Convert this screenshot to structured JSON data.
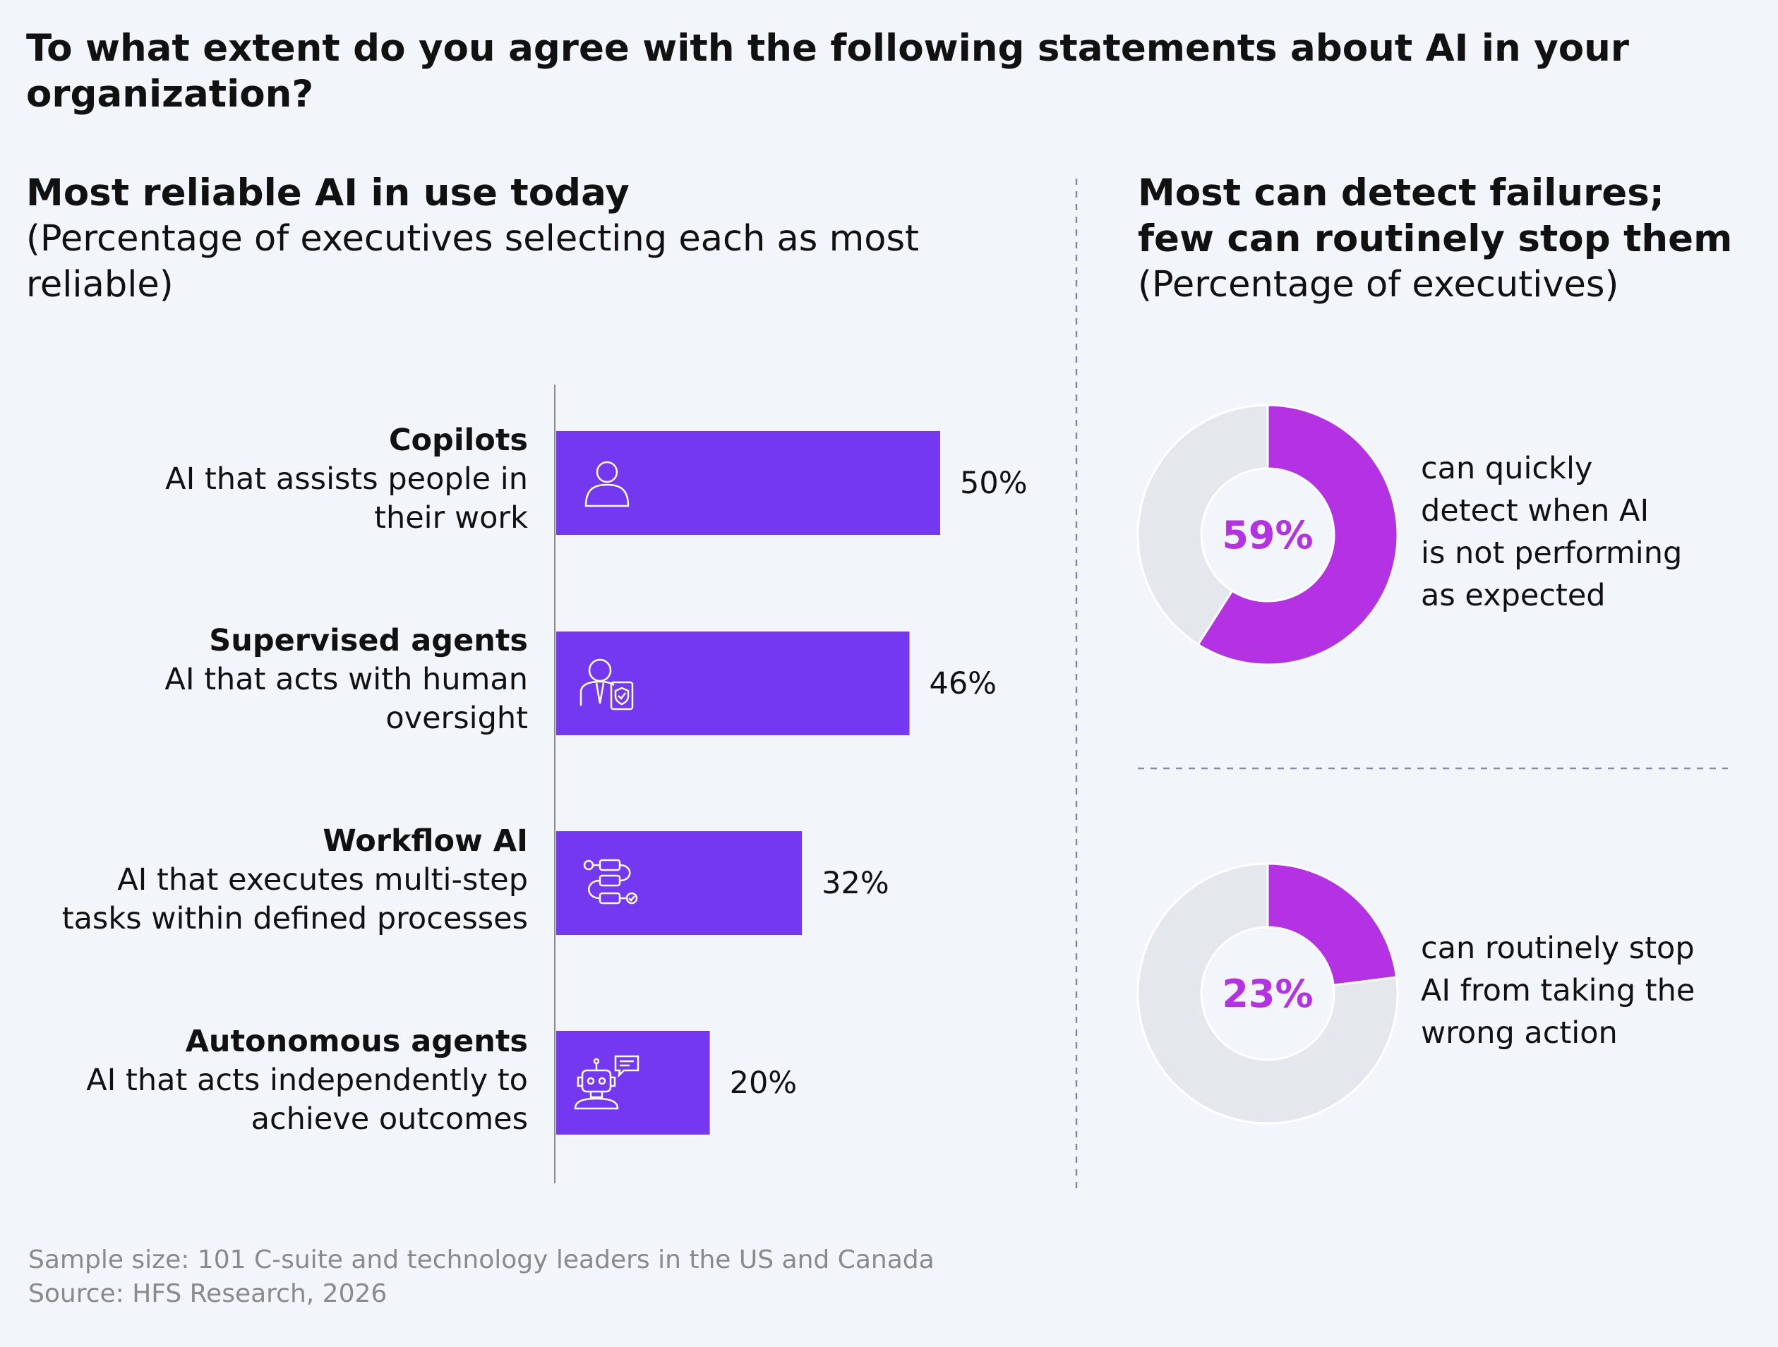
{
  "title": "To what extent do you agree with the following statements about AI in your organization?",
  "left_panel": {
    "title": "Most reliable AI in use today",
    "subtitle": "(Percentage of executives selecting each as most reliable)"
  },
  "right_panel": {
    "title_line1": "Most can detect failures;",
    "title_line2": "few can routinely stop them",
    "subtitle": "(Percentage of executives)"
  },
  "chart_data": [
    {
      "type": "bar",
      "orientation": "horizontal",
      "categories": [
        "Copilots",
        "Supervised agents",
        "Workflow AI",
        "Autonomous agents"
      ],
      "descriptions": [
        [
          "AI that assists people in",
          "their work"
        ],
        [
          "AI that acts with human",
          "oversight"
        ],
        [
          "AI that executes multi-step",
          "tasks within defined processes"
        ],
        [
          "AI that acts independently to",
          "achieve outcomes"
        ]
      ],
      "icons": [
        "person-icon",
        "supervisor-shield-icon",
        "workflow-icon",
        "robot-chat-icon"
      ],
      "values": [
        50,
        46,
        32,
        20
      ],
      "value_labels": [
        "50%",
        "46%",
        "32%",
        "20%"
      ],
      "xlim": [
        0,
        100
      ],
      "color": "#7338f0"
    },
    {
      "type": "pie",
      "donut": true,
      "values": [
        59,
        41
      ],
      "center_label": "59%",
      "caption": [
        "can quickly",
        "detect when AI",
        "is not performing",
        "as expected"
      ],
      "colors": [
        "#b432e3",
        "#e4e7ec"
      ]
    },
    {
      "type": "pie",
      "donut": true,
      "values": [
        23,
        77
      ],
      "center_label": "23%",
      "caption": [
        "can routinely stop",
        "AI from taking the",
        "wrong action"
      ],
      "colors": [
        "#b432e3",
        "#e4e7ec"
      ]
    }
  ],
  "footer": {
    "sample": "Sample size: 101 C-suite and technology leaders in the US and Canada",
    "source": "Source: HFS Research, 2026"
  },
  "colors": {
    "background": "#f2f5f9",
    "bar": "#7338f0",
    "donut_accent": "#b432e3",
    "donut_rest": "#e4e7ec",
    "divider": "#8a8aa8"
  }
}
